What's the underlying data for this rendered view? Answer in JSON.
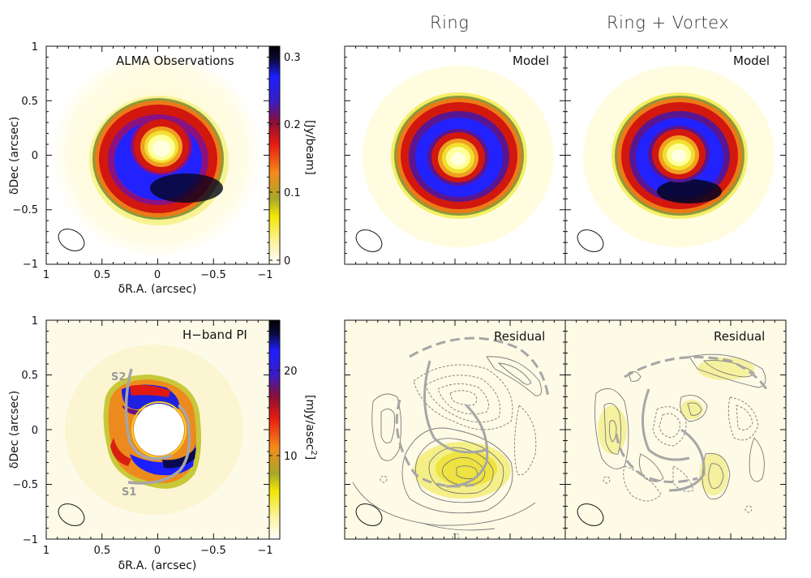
{
  "columns": {
    "ring": "Ring",
    "ring_vortex": "Ring + Vortex"
  },
  "panels": {
    "alma": "ALMA Observations",
    "model_ring": "Model",
    "model_vortex": "Model",
    "hband": "H−band PI",
    "residual_ring": "Residual",
    "residual_vortex": "Residual"
  },
  "spiral_labels": {
    "s1": "S1",
    "s2": "S2"
  },
  "axes": {
    "xlabel": "δR.A. (arcsec)",
    "ylabel": "δDec (arcsec)",
    "xticks": [
      "1",
      "0.5",
      "0",
      "−0.5",
      "−1"
    ],
    "yticks": [
      "1",
      "0.5",
      "0",
      "−0.5",
      "−1"
    ]
  },
  "colorbars": {
    "top": {
      "label": "[Jy/beam]",
      "ticks": [
        "0.3",
        "0.2",
        "0.1",
        "0"
      ]
    },
    "bottom": {
      "label": "[mJy/asec",
      "label_sup": "2",
      "label_end": "]",
      "ticks": [
        "20",
        "10"
      ]
    }
  },
  "colors": {
    "colormap": [
      "#ffffff",
      "#fbf3a0",
      "#f3e600",
      "#a8a82a",
      "#f58a1a",
      "#e81c0f",
      "#8c0f35",
      "#3a1cc8",
      "#1c1fff",
      "#0a0a3a",
      "#000000"
    ],
    "overlay_gray": "#a6a6a6",
    "residual_bg": "#fdfae6"
  },
  "chart_data": [
    {
      "type": "heatmap",
      "panel": "alma",
      "title": "ALMA Observations",
      "unit": "Jy/beam",
      "vlim": [
        0,
        0.32
      ],
      "xlim": [
        1,
        -1
      ],
      "ylim": [
        -1,
        1
      ],
      "xlabel": "δR.A. (arcsec)",
      "ylabel": "δDec (arcsec)"
    },
    {
      "type": "heatmap",
      "panel": "model_ring",
      "title": "Model",
      "column": "Ring",
      "xlim": [
        1,
        -1
      ],
      "ylim": [
        -1,
        1
      ]
    },
    {
      "type": "heatmap",
      "panel": "model_vortex",
      "title": "Model",
      "column": "Ring + Vortex",
      "xlim": [
        1,
        -1
      ],
      "ylim": [
        -1,
        1
      ]
    },
    {
      "type": "heatmap",
      "panel": "hband",
      "title": "H−band PI",
      "unit": "mJy/asec^2",
      "vlim": [
        0,
        26
      ],
      "xlim": [
        1,
        -1
      ],
      "ylim": [
        -1,
        1
      ],
      "xlabel": "δR.A. (arcsec)",
      "ylabel": "δDec (arcsec)"
    },
    {
      "type": "heatmap",
      "panel": "residual_ring",
      "title": "Residual",
      "column": "Ring",
      "xlim": [
        1,
        -1
      ],
      "ylim": [
        -1,
        1
      ]
    },
    {
      "type": "heatmap",
      "panel": "residual_vortex",
      "title": "Residual",
      "column": "Ring + Vortex",
      "xlim": [
        1,
        -1
      ],
      "ylim": [
        -1,
        1
      ]
    }
  ]
}
